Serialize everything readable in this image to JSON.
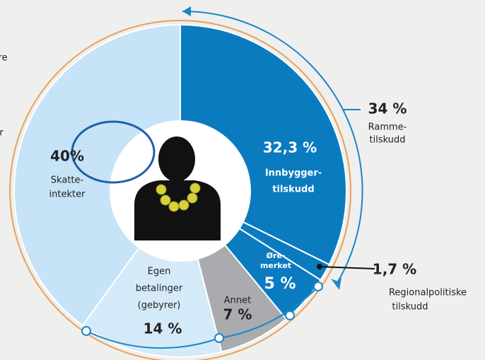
{
  "chart_data": {
    "type": "pie",
    "categories": [
      [
        "Innbygger-",
        "tilskudd"
      ],
      [
        "Regionalpolitiske",
        "tilskudd"
      ],
      [
        "Øre-",
        "merket"
      ],
      [
        "Annet"
      ],
      [
        "Egen",
        "betalinger",
        "(gebyrer)"
      ],
      [
        "Skatte-",
        "intekter"
      ]
    ],
    "values": [
      32.3,
      1.7,
      5,
      7,
      14,
      40
    ],
    "value_labels": [
      "32,3 %",
      "1,7 %",
      "5 %",
      "7 %",
      "14 %",
      "40%"
    ],
    "colors": [
      "#0b7bc0",
      "#0b7bc0",
      "#0b7bc0",
      "#a9abae",
      "#d5eaf8",
      "#c6e3f7"
    ],
    "annotations": [
      {
        "value": 34,
        "value_label": "34 %",
        "label": [
          "Ramme-",
          "tilskudd"
        ]
      }
    ],
    "fragments": [
      "re",
      "r"
    ]
  }
}
